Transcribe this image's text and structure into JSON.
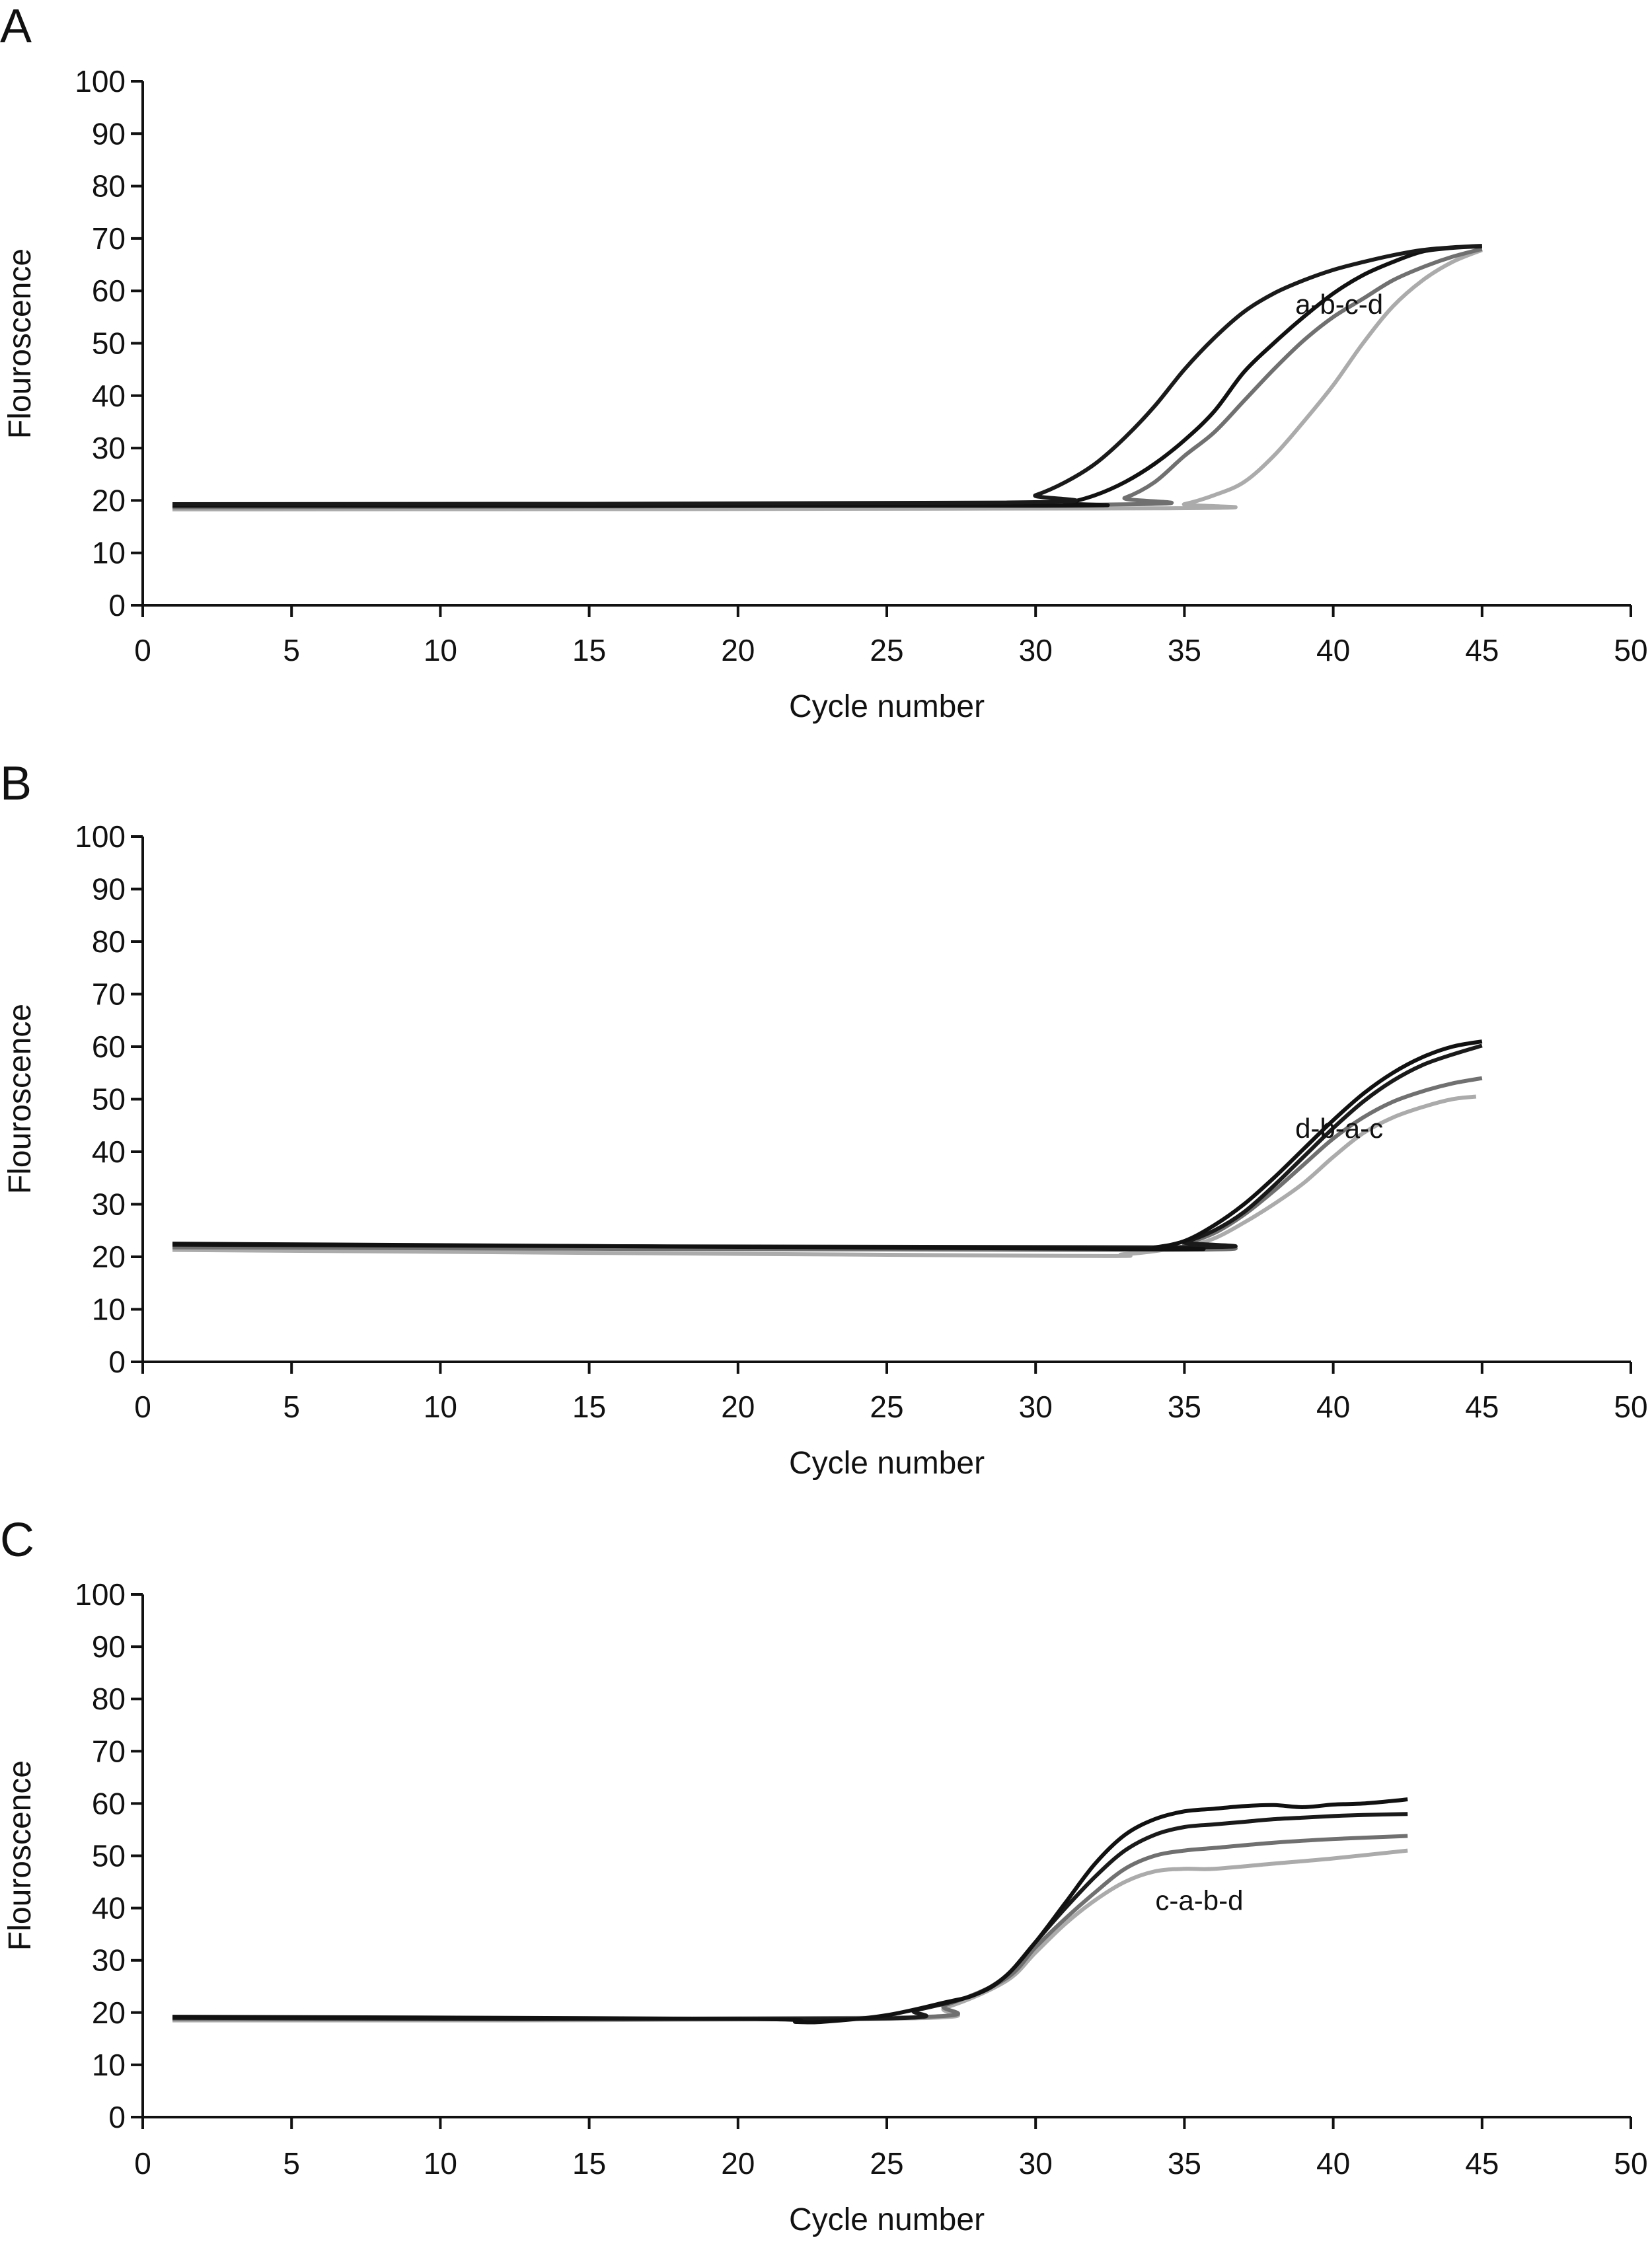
{
  "chart_data": [
    {
      "type": "line",
      "panel_label": "A",
      "xlabel": "Cycle number",
      "ylabel": "Flouroscence",
      "xlim": [
        0,
        50
      ],
      "ylim": [
        0,
        100
      ],
      "xticks": [
        0,
        5,
        10,
        15,
        20,
        25,
        30,
        35,
        40,
        45,
        50
      ],
      "yticks": [
        0,
        10,
        20,
        30,
        40,
        50,
        60,
        70,
        80,
        90,
        100
      ],
      "grid": false,
      "annotation": {
        "text": "a-b-c-d",
        "x": 40.2,
        "y": 57.5
      },
      "series": [
        {
          "color": "#1a1a1a",
          "x": [
            1,
            29,
            30,
            31,
            32,
            33,
            34,
            35,
            36,
            37,
            38,
            39,
            40,
            41,
            42,
            43,
            44,
            45
          ],
          "y": [
            19.3,
            19.6,
            21,
            23.5,
            27,
            32,
            38,
            45,
            51,
            56,
            59.5,
            62,
            64,
            65.5,
            66.8,
            67.8,
            68.3,
            68.6
          ]
        },
        {
          "color": "#111111",
          "x": [
            1,
            30,
            31,
            32,
            33,
            34,
            35,
            36,
            37,
            38,
            39,
            40,
            41,
            42,
            43,
            44,
            45
          ],
          "y": [
            19,
            19,
            19.5,
            21,
            23.5,
            27,
            31.5,
            37,
            44.5,
            50,
            55,
            59.5,
            63,
            65.5,
            67.5,
            68.2,
            68.5
          ]
        },
        {
          "color": "#707070",
          "x": [
            1,
            32,
            33,
            34,
            35,
            36,
            37,
            38,
            39,
            40,
            41,
            42,
            43,
            44,
            45
          ],
          "y": [
            18.7,
            19.2,
            20.5,
            23.5,
            28.5,
            33,
            39,
            45,
            50.5,
            55,
            58.5,
            62,
            64.5,
            66.5,
            68
          ]
        },
        {
          "color": "#ababab",
          "x": [
            1,
            34,
            35,
            36,
            37,
            38,
            39,
            40,
            41,
            42,
            43,
            44,
            45
          ],
          "y": [
            18.3,
            18.5,
            19.3,
            21,
            23.5,
            28.5,
            35,
            42,
            50,
            57,
            62,
            65.5,
            67.8
          ]
        }
      ]
    },
    {
      "type": "line",
      "panel_label": "B",
      "xlabel": "Cycle number",
      "ylabel": "Flouroscence",
      "xlim": [
        0,
        50
      ],
      "ylim": [
        0,
        100
      ],
      "xticks": [
        0,
        5,
        10,
        15,
        20,
        25,
        30,
        35,
        40,
        45,
        50
      ],
      "yticks": [
        0,
        10,
        20,
        30,
        40,
        50,
        60,
        70,
        80,
        90,
        100
      ],
      "grid": false,
      "annotation": {
        "text": "d-b-a-c",
        "x": 40.2,
        "y": 44.5
      },
      "series": [
        {
          "color": "#111111",
          "x": [
            1,
            33,
            34,
            35,
            36,
            37,
            38,
            39,
            40,
            41,
            42,
            43,
            44,
            45
          ],
          "y": [
            22.5,
            21.5,
            21.8,
            23,
            26,
            30,
            35,
            40.5,
            46,
            51,
            55,
            58,
            60,
            61
          ]
        },
        {
          "color": "#1a1a1a",
          "x": [
            1,
            34,
            35,
            36,
            37,
            38,
            39,
            40,
            41,
            42,
            43,
            44,
            45
          ],
          "y": [
            22.3,
            21.8,
            22.8,
            25,
            28.5,
            33.5,
            39,
            44.5,
            49.5,
            53.5,
            56.5,
            58.5,
            60.2
          ]
        },
        {
          "color": "#707070",
          "x": [
            1,
            34,
            35,
            36,
            37,
            38,
            39,
            40,
            41,
            42,
            43,
            44,
            45
          ],
          "y": [
            21.8,
            21.3,
            22.5,
            24.5,
            28,
            32.5,
            37.5,
            42.5,
            46.5,
            49.5,
            51.5,
            53,
            54
          ]
        },
        {
          "color": "#ababab",
          "x": [
            1,
            30,
            33,
            35,
            36,
            37,
            38,
            39,
            40,
            41,
            42,
            43,
            44,
            44.8
          ],
          "y": [
            21.3,
            20.2,
            20.5,
            22,
            23.5,
            26.5,
            30,
            34,
            39,
            43.5,
            46.5,
            48.5,
            50,
            50.5
          ]
        }
      ]
    },
    {
      "type": "line",
      "panel_label": "C",
      "xlabel": "Cycle number",
      "ylabel": "Flouroscence",
      "xlim": [
        0,
        50
      ],
      "ylim": [
        0,
        100
      ],
      "xticks": [
        0,
        5,
        10,
        15,
        20,
        25,
        30,
        35,
        40,
        45,
        50
      ],
      "yticks": [
        0,
        10,
        20,
        30,
        40,
        50,
        60,
        70,
        80,
        90,
        100
      ],
      "grid": false,
      "annotation": {
        "text": "c-a-b-d",
        "x": 35.5,
        "y": 41.5
      },
      "series": [
        {
          "color": "#111111",
          "x": [
            1,
            20,
            22,
            23,
            25,
            27,
            28,
            29,
            30,
            31,
            32,
            33,
            34,
            35,
            36,
            37,
            38,
            39,
            40,
            41,
            42,
            42.5
          ],
          "y": [
            19.2,
            18.8,
            18.2,
            18.3,
            19.5,
            22,
            23.5,
            27,
            33.5,
            41,
            48.5,
            54,
            57,
            58.5,
            59,
            59.5,
            59.7,
            59.3,
            59.8,
            60,
            60.5,
            60.8
          ]
        },
        {
          "color": "#1a1a1a",
          "x": [
            1,
            24,
            26,
            28,
            29,
            30,
            31,
            32,
            33,
            34,
            35,
            36,
            37,
            38,
            39,
            40,
            41,
            42.5
          ],
          "y": [
            19,
            18.8,
            20.5,
            23.5,
            27,
            33.5,
            40,
            46,
            51,
            54,
            55.5,
            56,
            56.5,
            57,
            57.3,
            57.6,
            57.8,
            58
          ]
        },
        {
          "color": "#707070",
          "x": [
            1,
            25,
            27,
            29,
            30,
            31,
            32,
            33,
            34,
            35,
            36,
            38,
            40,
            42.5
          ],
          "y": [
            18.8,
            19,
            21.5,
            26.5,
            32.5,
            38,
            43,
            47.5,
            50,
            51,
            51.5,
            52.5,
            53.2,
            53.8
          ]
        },
        {
          "color": "#ababab",
          "x": [
            1,
            25,
            27,
            29,
            30,
            31,
            32,
            33,
            34,
            35,
            36,
            38,
            40,
            42.5
          ],
          "y": [
            18.5,
            18.8,
            21,
            26,
            31.5,
            37,
            41.5,
            45,
            47,
            47.5,
            47.5,
            48.5,
            49.5,
            51
          ]
        }
      ]
    }
  ]
}
